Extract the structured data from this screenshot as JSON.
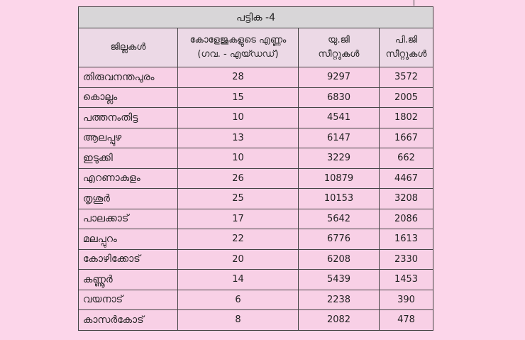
{
  "table": {
    "title": "പട്ടിക -4",
    "headers": [
      {
        "line1": "ജില്ലകൾ",
        "line2": ""
      },
      {
        "line1": "കോളേജുകളുടെ എണ്ണം",
        "line2": "(ഗവ. - എയ്ഡഡ്)"
      },
      {
        "line1": "യു.ജി",
        "line2": "സീറ്റുകൾ"
      },
      {
        "line1": "പി.ജി",
        "line2": "സീറ്റുകൾ"
      }
    ],
    "rows": [
      {
        "district": "തിരുവനന്തപുരം",
        "colleges": "28",
        "ug": "9297",
        "pg": "3572"
      },
      {
        "district": "കൊല്ലം",
        "colleges": "15",
        "ug": "6830",
        "pg": "2005"
      },
      {
        "district": "പത്തനംതിട്ട",
        "colleges": "10",
        "ug": "4541",
        "pg": "1802"
      },
      {
        "district": "ആലപ്പുഴ",
        "colleges": "13",
        "ug": "6147",
        "pg": "1667"
      },
      {
        "district": "ഇടുക്കി",
        "colleges": "10",
        "ug": "3229",
        "pg": "662"
      },
      {
        "district": "എറണാകുളം",
        "colleges": "26",
        "ug": "10879",
        "pg": "4467"
      },
      {
        "district": "തൃശൂർ",
        "colleges": "25",
        "ug": "10153",
        "pg": "3208"
      },
      {
        "district": "പാലക്കാട്",
        "colleges": "17",
        "ug": "5642",
        "pg": "2086"
      },
      {
        "district": "മലപ്പുറം",
        "colleges": "22",
        "ug": "6776",
        "pg": "1613"
      },
      {
        "district": "കോഴിക്കോട്",
        "colleges": "20",
        "ug": "6208",
        "pg": "2330"
      },
      {
        "district": "കണ്ണൂർ",
        "colleges": "14",
        "ug": "5439",
        "pg": "1453"
      },
      {
        "district": "വയനാട്",
        "colleges": "6",
        "ug": "2238",
        "pg": "390"
      },
      {
        "district": "കാസർകോട്",
        "colleges": "8",
        "ug": "2082",
        "pg": "478"
      }
    ]
  }
}
